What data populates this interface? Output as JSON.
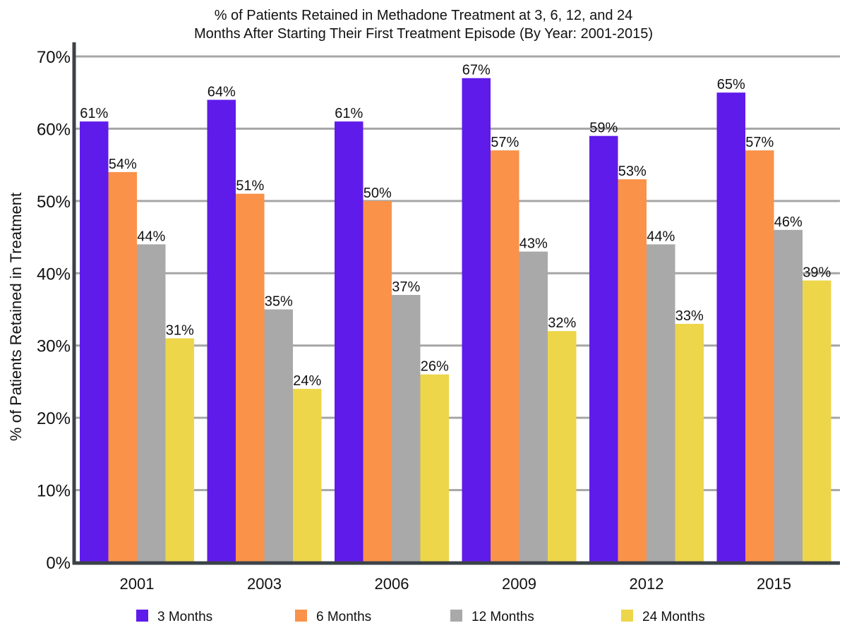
{
  "chart_data": {
    "type": "bar",
    "title_lines": [
      "% of Patients Retained in Methadone Treatment at 3, 6, 12, and 24",
      "Months After Starting Their First Treatment Episode (By Year: 2001-2015)"
    ],
    "xlabel": "",
    "ylabel": "% of Patients Retained in Treatment",
    "ylim": [
      0,
      70
    ],
    "y_ticks": [
      0,
      10,
      20,
      30,
      40,
      50,
      60,
      70
    ],
    "y_tick_labels": [
      "0%",
      "10%",
      "20%",
      "30%",
      "40%",
      "50%",
      "60%",
      "70%"
    ],
    "value_suffix": "%",
    "grid": true,
    "legend_position": "bottom",
    "categories": [
      "2001",
      "2003",
      "2006",
      "2009",
      "2012",
      "2015"
    ],
    "series": [
      {
        "name": "3 Months",
        "color": "#5f1bea",
        "values": [
          61,
          64,
          61,
          67,
          59,
          65
        ]
      },
      {
        "name": "6 Months",
        "color": "#fa9249",
        "values": [
          54,
          51,
          50,
          57,
          53,
          57
        ]
      },
      {
        "name": "12 Months",
        "color": "#a9a9a9",
        "values": [
          44,
          35,
          37,
          43,
          44,
          46
        ]
      },
      {
        "name": "24 Months",
        "color": "#edd64a",
        "values": [
          31,
          24,
          26,
          32,
          33,
          39
        ]
      }
    ]
  }
}
